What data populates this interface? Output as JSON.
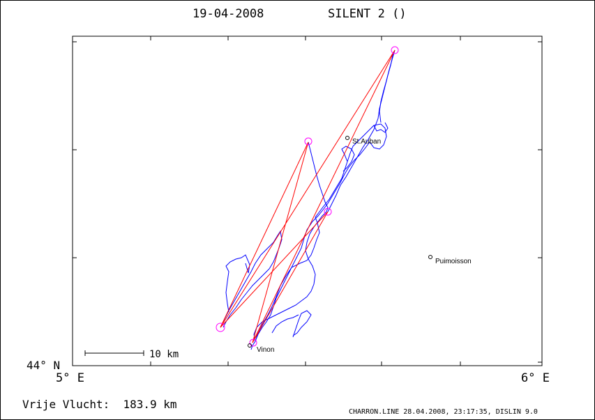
{
  "header": {
    "date": "19-04-2008",
    "flight_name": "SILENT 2 ()"
  },
  "axes": {
    "lat_label": "44° N",
    "lon_min_label": "5° E",
    "lon_max_label": "6° E"
  },
  "scale_bar": {
    "label": "10 km"
  },
  "places": [
    {
      "name": "St.Auban"
    },
    {
      "name": "Puimoisson"
    },
    {
      "name": "Vinon"
    }
  ],
  "footer": {
    "distance_text": "Vrije Vlucht:  183.9 km",
    "credit": "CHARRON.LINE 28.04.2008, 23:17:35, DISLIN 9.0"
  },
  "colors": {
    "track": "#0000ff",
    "triangle": "#ff0000",
    "turnpoint": "#ff00ff",
    "frame": "#000000"
  }
}
